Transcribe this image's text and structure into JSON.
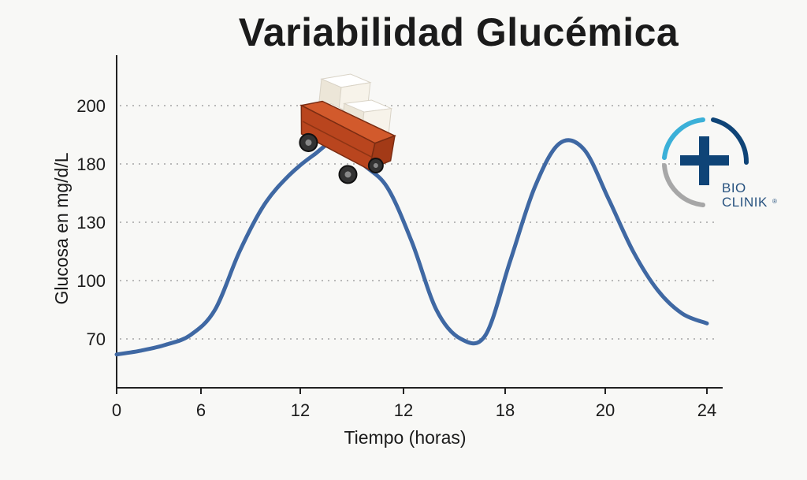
{
  "chart_data": {
    "type": "line",
    "title": "Variabilidad Glucémica",
    "xlabel": "Tiempo (horas)",
    "ylabel": "Glucosa en mg/d/L",
    "x_tick_labels": [
      "0",
      "6",
      "12",
      "12",
      "18",
      "20",
      "24"
    ],
    "y_tick_labels": [
      "70",
      "100",
      "130",
      "180",
      "200"
    ],
    "grid": "horizontal-dotted",
    "series": [
      {
        "color": "#3f68a3",
        "points": [
          {
            "x": 0,
            "y": 62
          },
          {
            "x": 1,
            "y": 64
          },
          {
            "x": 2,
            "y": 67
          },
          {
            "x": 3,
            "y": 72
          },
          {
            "x": 4,
            "y": 85
          },
          {
            "x": 5,
            "y": 115
          },
          {
            "x": 6,
            "y": 145
          },
          {
            "x": 7,
            "y": 170
          },
          {
            "x": 8,
            "y": 183
          },
          {
            "x": 9,
            "y": 188
          },
          {
            "x": 10,
            "y": 180
          },
          {
            "x": 11,
            "y": 160
          },
          {
            "x": 12,
            "y": 120
          },
          {
            "x": 13,
            "y": 85
          },
          {
            "x": 14,
            "y": 70
          },
          {
            "x": 15,
            "y": 72
          },
          {
            "x": 16,
            "y": 110
          },
          {
            "x": 17,
            "y": 160
          },
          {
            "x": 18,
            "y": 187
          },
          {
            "x": 19,
            "y": 185
          },
          {
            "x": 20,
            "y": 150
          },
          {
            "x": 21,
            "y": 115
          },
          {
            "x": 22,
            "y": 95
          },
          {
            "x": 23,
            "y": 83
          },
          {
            "x": 24,
            "y": 78
          }
        ]
      }
    ]
  },
  "logo": {
    "line1": "BIO",
    "line2": "CLINIK",
    "mark": "®",
    "colors": {
      "navy": "#0f4477",
      "cyan": "#3bb0d8",
      "gray": "#a7a7a7"
    }
  },
  "illustration": "sugar-cart-icon"
}
